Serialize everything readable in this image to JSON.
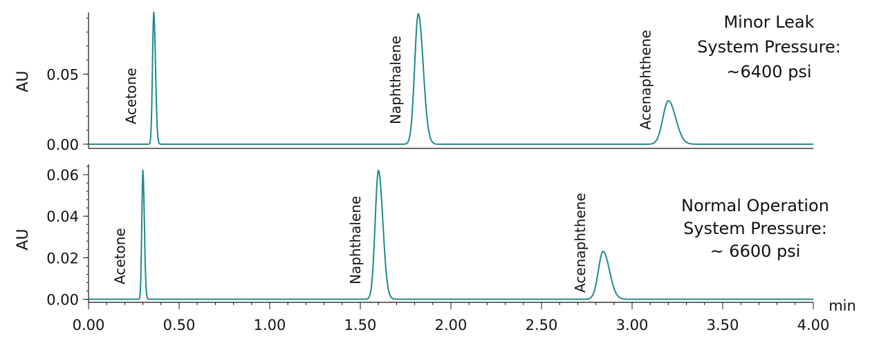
{
  "colors": {
    "trace": "#1f8a8a",
    "axis": "#111111",
    "background": "#ffffff"
  },
  "chart_data": [
    {
      "type": "line",
      "panel": "top",
      "ylabel": "AU",
      "ylim": [
        -0.003,
        0.094
      ],
      "xlim": [
        0,
        4.0
      ],
      "yticks": [
        0.0,
        0.05
      ],
      "ytick_labels": [
        "0.00",
        "0.05"
      ],
      "annotation_lines": [
        "Minor Leak",
        "System Pressure:",
        "~6400 psi"
      ],
      "baseline": 0.0,
      "peaks": [
        {
          "name": "Acetone",
          "rt": 0.36,
          "height": 0.094,
          "width": 0.007
        },
        {
          "name": "Naphthalene",
          "rt": 1.82,
          "height": 0.093,
          "width": 0.02
        },
        {
          "name": "Acenaphthene",
          "rt": 3.2,
          "height": 0.031,
          "width": 0.03
        }
      ]
    },
    {
      "type": "line",
      "panel": "bottom",
      "ylabel": "AU",
      "ylim": [
        -0.0015,
        0.065
      ],
      "xlim": [
        0,
        4.0
      ],
      "yticks": [
        0.0,
        0.02,
        0.04,
        0.06
      ],
      "ytick_labels": [
        "0.00",
        "0.02",
        "0.04",
        "0.06"
      ],
      "xticks": [
        0.0,
        0.5,
        1.0,
        1.5,
        2.0,
        2.5,
        3.0,
        3.5,
        4.0
      ],
      "xtick_labels": [
        "0.00",
        "0.50",
        "1.00",
        "1.50",
        "2.00",
        "2.50",
        "3.00",
        "3.50",
        "4.00"
      ],
      "xlabel": "min",
      "annotation_lines": [
        "Normal Operation",
        "System Pressure:",
        "~ 6600 psi"
      ],
      "baseline": 0.0,
      "peaks": [
        {
          "name": "Acetone",
          "rt": 0.3,
          "height": 0.062,
          "width": 0.006
        },
        {
          "name": "Naphthalene",
          "rt": 1.6,
          "height": 0.062,
          "width": 0.018
        },
        {
          "name": "Acenaphthene",
          "rt": 2.84,
          "height": 0.023,
          "width": 0.026
        }
      ]
    }
  ]
}
